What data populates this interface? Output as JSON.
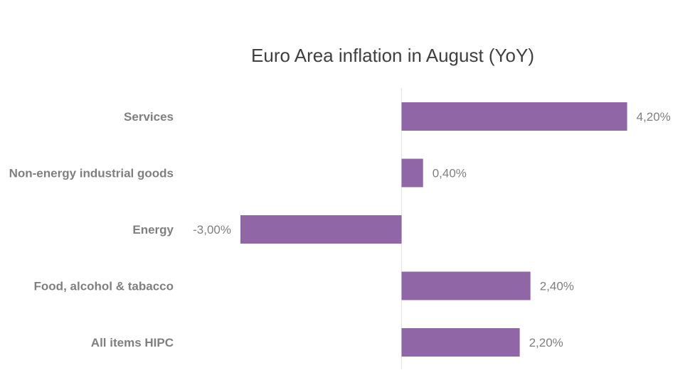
{
  "chart_data": {
    "type": "bar",
    "orientation": "horizontal",
    "title": "Euro Area inflation in August (YoY)",
    "categories": [
      "Services",
      "Non-energy industrial goods",
      "Energy",
      "Food, alcohol & tabacco",
      "All items HIPC"
    ],
    "values": [
      4.2,
      0.4,
      -3.0,
      2.4,
      2.2
    ],
    "data_labels": [
      "4,20%",
      "0,40%",
      "-3,00%",
      "2,40%",
      "2,20%"
    ],
    "xlabel": "",
    "ylabel": "",
    "xlim": [
      -3.0,
      4.2
    ],
    "grid": false,
    "legend": "none",
    "bar_color": "#9166a6",
    "axis_color": "#e3e3e3"
  }
}
